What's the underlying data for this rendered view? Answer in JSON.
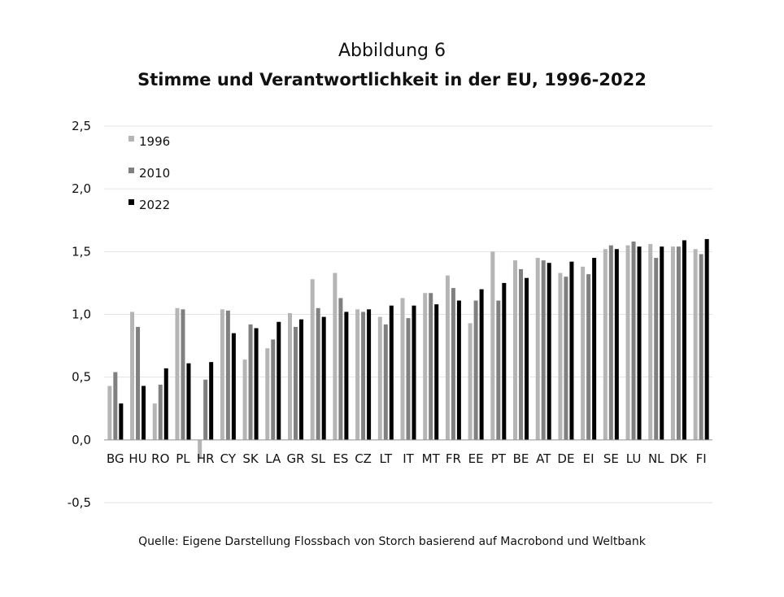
{
  "header": {
    "figure_number": "Abbildung 6",
    "title": "Stimme und Verantwortlichkeit in der EU, 1996-2022"
  },
  "footer": {
    "source": "Quelle: Eigene Darstellung Flossbach von Storch basierend auf Macrobond und Weltbank"
  },
  "chart_data": {
    "type": "bar",
    "title": "Stimme und Verantwortlichkeit in der EU, 1996-2022",
    "xlabel": "",
    "ylabel": "",
    "ylim": [
      -0.5,
      2.5
    ],
    "yticks": [
      "2,5",
      "2,0",
      "1,5",
      "1,0",
      "0,5",
      "0,0",
      "-0,5"
    ],
    "ytick_values": [
      2.5,
      2.0,
      1.5,
      1.0,
      0.5,
      0.0,
      -0.5
    ],
    "grid": true,
    "legend_position": "top-left",
    "categories": [
      "BG",
      "HU",
      "RO",
      "PL",
      "HR",
      "CY",
      "SK",
      "LA",
      "GR",
      "SL",
      "ES",
      "CZ",
      "LT",
      "IT",
      "MT",
      "FR",
      "EE",
      "PT",
      "BE",
      "AT",
      "DE",
      "EI",
      "SE",
      "LU",
      "NL",
      "DK",
      "FI"
    ],
    "series": [
      {
        "name": "1996",
        "color": "#b5b5b5",
        "values": [
          0.43,
          1.02,
          0.29,
          1.05,
          -0.15,
          1.04,
          0.64,
          0.73,
          1.01,
          1.28,
          1.33,
          1.04,
          0.98,
          1.13,
          1.17,
          1.31,
          0.93,
          1.5,
          1.43,
          1.45,
          1.33,
          1.38,
          1.52,
          1.55,
          1.56,
          1.54,
          1.52
        ]
      },
      {
        "name": "2010",
        "color": "#808080",
        "values": [
          0.54,
          0.9,
          0.44,
          1.04,
          0.48,
          1.03,
          0.92,
          0.8,
          0.9,
          1.05,
          1.13,
          1.02,
          0.92,
          0.97,
          1.17,
          1.21,
          1.11,
          1.11,
          1.36,
          1.43,
          1.3,
          1.32,
          1.55,
          1.58,
          1.45,
          1.54,
          1.48
        ]
      },
      {
        "name": "2022",
        "color": "#000000",
        "values": [
          0.29,
          0.43,
          0.57,
          0.61,
          0.62,
          0.85,
          0.89,
          0.94,
          0.96,
          0.98,
          1.02,
          1.04,
          1.07,
          1.07,
          1.08,
          1.11,
          1.2,
          1.25,
          1.29,
          1.41,
          1.42,
          1.45,
          1.52,
          1.54,
          1.54,
          1.59,
          1.6
        ]
      }
    ]
  }
}
